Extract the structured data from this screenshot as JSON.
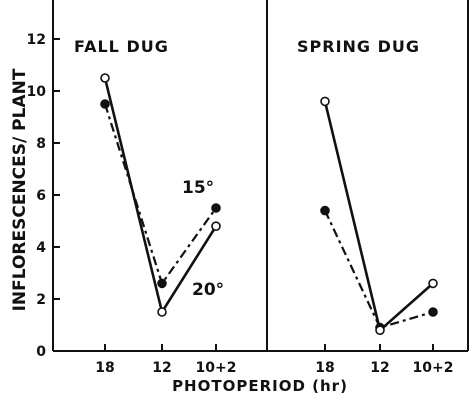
{
  "chart_data": {
    "type": "line",
    "y_label": "INFLORESCENCES/ PLANT",
    "x_label": "PHOTOPERIOD (hr)",
    "y_ticks": [
      0,
      2,
      4,
      6,
      8,
      10,
      12
    ],
    "ylim": [
      0,
      13
    ],
    "categories": [
      "18",
      "12",
      "10+2"
    ],
    "colors": {
      "ink": "#111111",
      "background": "#ffffff"
    },
    "panels": [
      {
        "title": "FALL DUG",
        "series": [
          {
            "name": "15°",
            "marker": "filled",
            "line": "dashed",
            "values": [
              9.5,
              2.6,
              5.5
            ]
          },
          {
            "name": "20°",
            "marker": "open",
            "line": "solid",
            "values": [
              10.5,
              1.5,
              4.8
            ]
          }
        ]
      },
      {
        "title": "SPRING DUG",
        "series": [
          {
            "marker": "filled",
            "line": "dashed",
            "values": [
              5.4,
              0.9,
              1.5
            ]
          },
          {
            "marker": "open",
            "line": "solid",
            "values": [
              9.6,
              0.8,
              2.6
            ]
          }
        ]
      }
    ]
  }
}
